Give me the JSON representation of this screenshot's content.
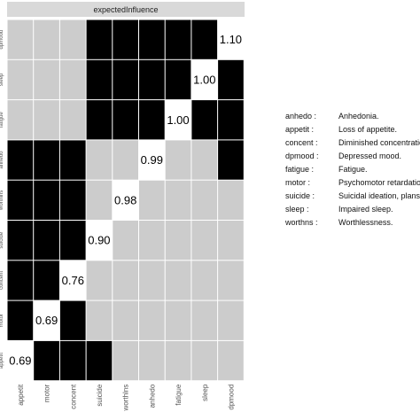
{
  "chart_data": {
    "type": "heatmap",
    "title": "expectedInfluence",
    "categories": [
      "appetit",
      "motor",
      "concent",
      "suicide",
      "worthlns",
      "anhedo",
      "fatigue",
      "sleep",
      "dpmood"
    ],
    "values": [
      0.69,
      0.69,
      0.76,
      0.9,
      0.98,
      0.99,
      1.0,
      1.0,
      1.1
    ],
    "value_labels": [
      "0.69",
      "0.69",
      "0.76",
      "0.90",
      "0.98",
      "0.99",
      "1.00",
      "1.00",
      "1.10"
    ],
    "matrix": [
      [
        0,
        0,
        0,
        1,
        1,
        1,
        1,
        1,
        1
      ],
      [
        0,
        0,
        0,
        1,
        1,
        1,
        1,
        1,
        1
      ],
      [
        0,
        0,
        0,
        1,
        1,
        1,
        1,
        1,
        1
      ],
      [
        1,
        1,
        1,
        0,
        0,
        0,
        0,
        0,
        1
      ],
      [
        1,
        1,
        1,
        0,
        0,
        0,
        0,
        0,
        0
      ],
      [
        1,
        1,
        1,
        0,
        0,
        0,
        0,
        0,
        0
      ],
      [
        1,
        1,
        1,
        0,
        0,
        0,
        0,
        0,
        0
      ],
      [
        1,
        1,
        1,
        0,
        0,
        0,
        0,
        0,
        0
      ],
      [
        1,
        1,
        1,
        1,
        0,
        0,
        0,
        0,
        0
      ]
    ],
    "colors": {
      "significant": "#000000",
      "nonsignificant": "#cccccc",
      "diagonal": "#ffffff",
      "strip": "#d9d9d9"
    },
    "legend_position": "right"
  },
  "legend": {
    "items": [
      {
        "key": "anhedo :",
        "desc": "Anhedonia."
      },
      {
        "key": "appetit :",
        "desc": "Loss of appetite."
      },
      {
        "key": "concent :",
        "desc": "Diminished concentration."
      },
      {
        "key": "dpmood :",
        "desc": "Depressed mood."
      },
      {
        "key": "fatigue :",
        "desc": "Fatigue."
      },
      {
        "key": "motor :",
        "desc": "Psychomotor retardation."
      },
      {
        "key": "suicide :",
        "desc": "Suicidal ideation, plans."
      },
      {
        "key": "sleep :",
        "desc": "Impaired sleep."
      },
      {
        "key": "worthns :",
        "desc": "Worthlessness."
      }
    ]
  }
}
